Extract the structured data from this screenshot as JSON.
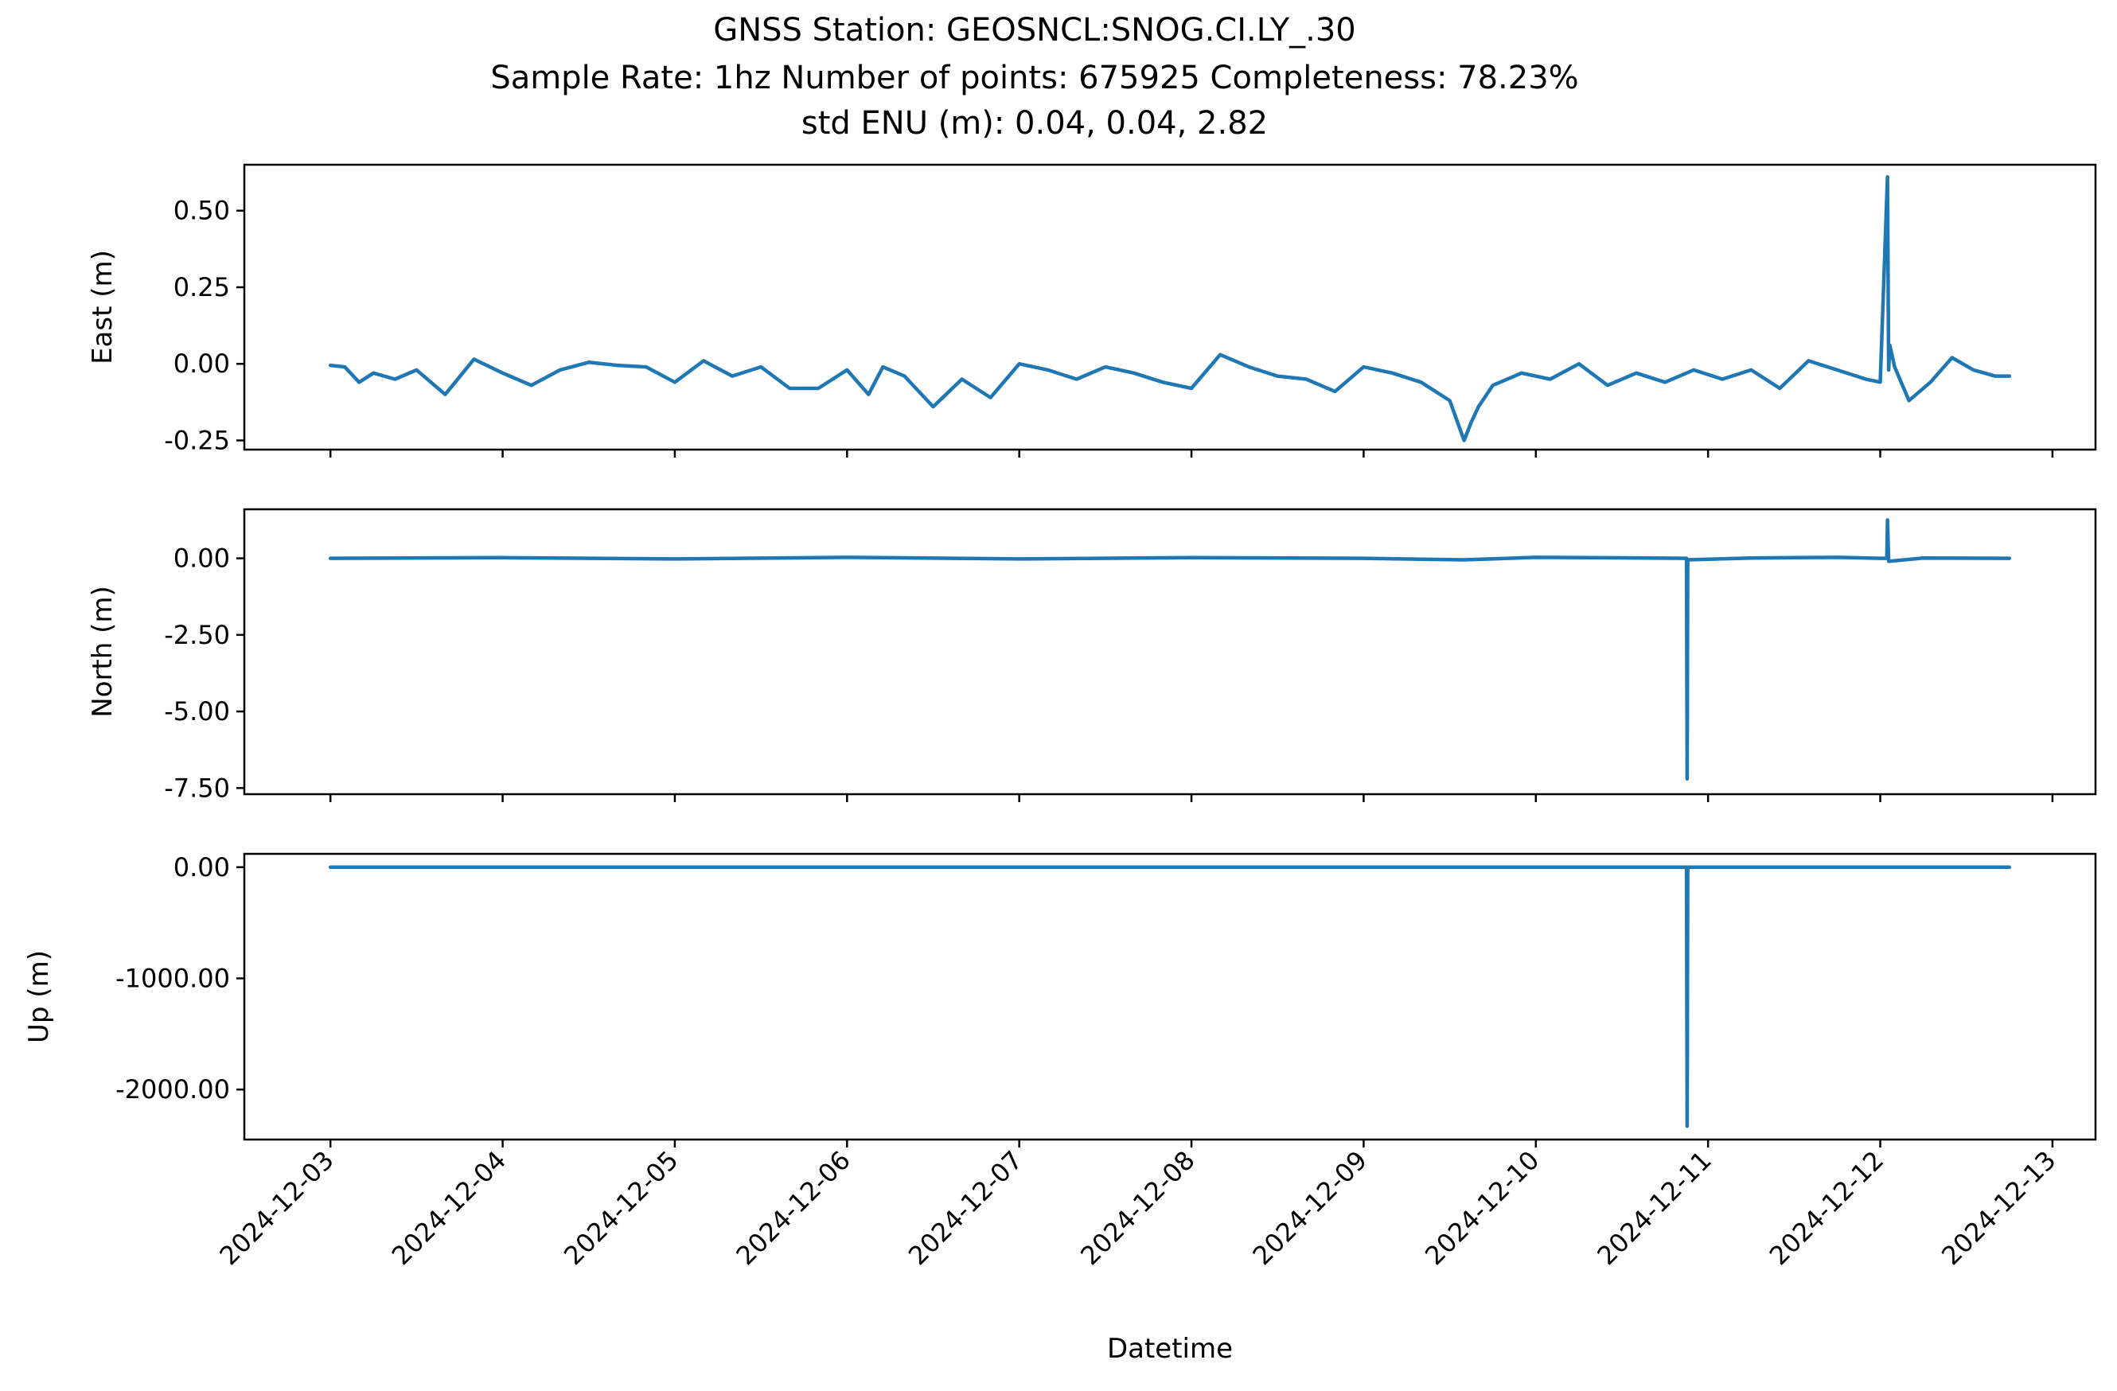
{
  "chart_data": {
    "type": "line",
    "title_lines": [
      "GNSS Station: GEOSNCL:SNOG.CI.LY_.30",
      "Sample Rate: 1hz   Number of points: 675925    Completeness:  78.23%",
      "std ENU (m):  0.04, 0.04, 2.82"
    ],
    "xlabel": "Datetime",
    "x_tick_labels": [
      "2024-12-03",
      "2024-12-04",
      "2024-12-05",
      "2024-12-06",
      "2024-12-07",
      "2024-12-08",
      "2024-12-09",
      "2024-12-10",
      "2024-12-11",
      "2024-12-12",
      "2024-12-13"
    ],
    "xlim": [
      "2024-12-02T12:00",
      "2024-12-13T06:00"
    ],
    "line_color": "#1f77b4",
    "panels": [
      {
        "ylabel": "East (m)",
        "ylim": [
          -0.28,
          0.65
        ],
        "y_ticks": [
          0.5,
          0.25,
          0.0,
          -0.25
        ],
        "y_tick_labels": [
          "0.50",
          "0.25",
          "0.00",
          "-0.25"
        ],
        "series": {
          "x": [
            "2024-12-03T00:00",
            "2024-12-03T02:00",
            "2024-12-03T04:00",
            "2024-12-03T06:00",
            "2024-12-03T09:00",
            "2024-12-03T12:00",
            "2024-12-03T16:00",
            "2024-12-03T20:00",
            "2024-12-04T00:00",
            "2024-12-04T04:00",
            "2024-12-04T08:00",
            "2024-12-04T12:00",
            "2024-12-04T16:00",
            "2024-12-04T20:00",
            "2024-12-05T00:00",
            "2024-12-05T04:00",
            "2024-12-05T08:00",
            "2024-12-05T12:00",
            "2024-12-05T16:00",
            "2024-12-05T20:00",
            "2024-12-06T00:00",
            "2024-12-06T03:00",
            "2024-12-06T05:00",
            "2024-12-06T08:00",
            "2024-12-06T12:00",
            "2024-12-06T16:00",
            "2024-12-06T20:00",
            "2024-12-07T00:00",
            "2024-12-07T04:00",
            "2024-12-07T08:00",
            "2024-12-07T12:00",
            "2024-12-07T16:00",
            "2024-12-07T20:00",
            "2024-12-08T00:00",
            "2024-12-08T04:00",
            "2024-12-08T08:00",
            "2024-12-08T12:00",
            "2024-12-08T16:00",
            "2024-12-08T20:00",
            "2024-12-09T00:00",
            "2024-12-09T04:00",
            "2024-12-09T08:00",
            "2024-12-09T12:00",
            "2024-12-09T14:00",
            "2024-12-09T15:00",
            "2024-12-09T16:00",
            "2024-12-09T18:00",
            "2024-12-09T22:00",
            "2024-12-10T02:00",
            "2024-12-10T06:00",
            "2024-12-10T10:00",
            "2024-12-10T14:00",
            "2024-12-10T18:00",
            "2024-12-10T22:00",
            "2024-12-11T02:00",
            "2024-12-11T06:00",
            "2024-12-11T10:00",
            "2024-12-11T14:00",
            "2024-12-11T18:00",
            "2024-12-11T22:00",
            "2024-12-12T00:00",
            "2024-12-12T01:00",
            "2024-12-12T01:10",
            "2024-12-12T01:20",
            "2024-12-12T02:00",
            "2024-12-12T04:00",
            "2024-12-12T07:00",
            "2024-12-12T10:00",
            "2024-12-12T13:00",
            "2024-12-12T16:00",
            "2024-12-12T18:00"
          ],
          "y": [
            -0.005,
            -0.01,
            -0.06,
            -0.03,
            -0.05,
            -0.02,
            -0.1,
            0.015,
            -0.03,
            -0.07,
            -0.02,
            0.005,
            -0.005,
            -0.01,
            -0.06,
            0.01,
            -0.04,
            -0.01,
            -0.08,
            -0.08,
            -0.02,
            -0.1,
            -0.01,
            -0.04,
            -0.14,
            -0.05,
            -0.11,
            0.0,
            -0.02,
            -0.05,
            -0.01,
            -0.03,
            -0.06,
            -0.08,
            0.03,
            -0.01,
            -0.04,
            -0.05,
            -0.09,
            -0.01,
            -0.03,
            -0.06,
            -0.12,
            -0.25,
            -0.19,
            -0.14,
            -0.07,
            -0.03,
            -0.05,
            0.0,
            -0.07,
            -0.03,
            -0.06,
            -0.02,
            -0.05,
            -0.02,
            -0.08,
            0.01,
            -0.02,
            -0.05,
            -0.06,
            0.61,
            -0.02,
            0.06,
            -0.01,
            -0.12,
            -0.06,
            0.02,
            -0.02,
            -0.04,
            -0.04
          ]
        }
      },
      {
        "ylabel": "North (m)",
        "ylim": [
          -7.7,
          1.6
        ],
        "y_ticks": [
          0.0,
          -2.5,
          -5.0,
          -7.5
        ],
        "y_tick_labels": [
          "0.00",
          "-2.50",
          "-5.00",
          "-7.50"
        ],
        "series": {
          "x": [
            "2024-12-03T00:00",
            "2024-12-04T00:00",
            "2024-12-05T00:00",
            "2024-12-06T00:00",
            "2024-12-07T00:00",
            "2024-12-08T00:00",
            "2024-12-09T00:00",
            "2024-12-09T14:00",
            "2024-12-10T00:00",
            "2024-12-10T21:00",
            "2024-12-10T21:05",
            "2024-12-10T21:10",
            "2024-12-11T06:00",
            "2024-12-11T18:00",
            "2024-12-12T00:00",
            "2024-12-12T00:55",
            "2024-12-12T01:00",
            "2024-12-12T01:10",
            "2024-12-12T06:00",
            "2024-12-12T18:00"
          ],
          "y": [
            0.0,
            0.02,
            -0.02,
            0.03,
            -0.02,
            0.02,
            0.0,
            -0.05,
            0.03,
            0.0,
            -7.2,
            -0.05,
            0.01,
            0.03,
            0.0,
            0.0,
            1.25,
            -0.1,
            0.01,
            0.0
          ]
        }
      },
      {
        "ylabel": "Up (m)",
        "ylim": [
          -2450,
          120
        ],
        "y_ticks": [
          0,
          -1000,
          -2000
        ],
        "y_tick_labels": [
          "0.00",
          "-1000.00",
          "-2000.00"
        ],
        "series": {
          "x": [
            "2024-12-03T00:00",
            "2024-12-10T21:00",
            "2024-12-10T21:05",
            "2024-12-10T21:10",
            "2024-12-12T18:00"
          ],
          "y": [
            0,
            0,
            -2330,
            0,
            0
          ]
        }
      }
    ]
  }
}
